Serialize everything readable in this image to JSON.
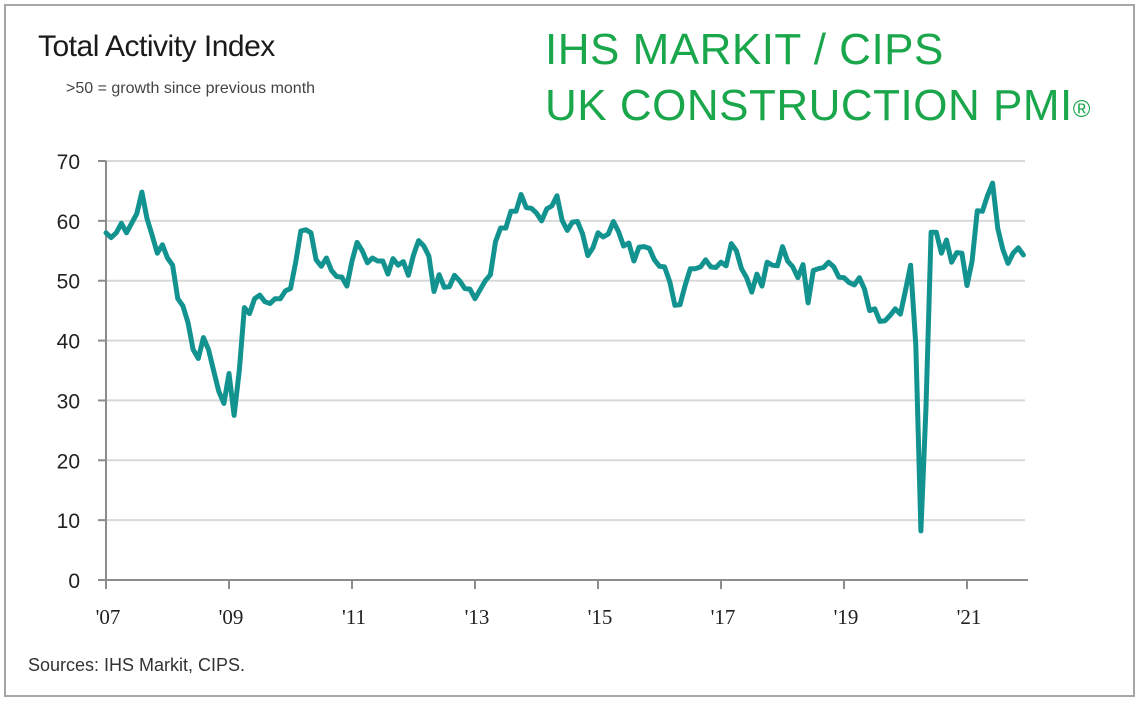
{
  "header": {
    "title": "Total Activity Index",
    "subtitle": ">50 = growth since previous month",
    "brand_line1": "IHS MARKIT / CIPS",
    "brand_line2": "UK CONSTRUCTION PMI",
    "brand_mark": "®"
  },
  "footer": {
    "source": "Sources: IHS Markit, CIPS."
  },
  "colors": {
    "line": "#13938f",
    "brand": "#1aa64a",
    "grid": "#d9d9d9",
    "axis": "#8c8c8c"
  },
  "chart_data": {
    "type": "line",
    "title": "Total Activity Index",
    "subtitle": ">50 = growth since previous month",
    "xlabel": "",
    "ylabel": "",
    "ylim": [
      0,
      70
    ],
    "yticks": [
      0,
      10,
      20,
      30,
      40,
      50,
      60,
      70
    ],
    "xticks": [
      "'07",
      "'09",
      "'11",
      "'13",
      "'15",
      "'17",
      "'19",
      "'21"
    ],
    "grid": true,
    "legend": null,
    "x_start": "2007-01",
    "x_frequency": "monthly",
    "series": [
      {
        "name": "UK Construction PMI Total Activity Index",
        "values": [
          58.0,
          57.2,
          58.0,
          59.6,
          58.0,
          59.6,
          61.2,
          64.8,
          60.4,
          57.6,
          54.6,
          56.0,
          53.8,
          52.6,
          47.0,
          45.8,
          43.0,
          38.5,
          37.0,
          40.5,
          38.5,
          35.0,
          31.5,
          29.5,
          34.5,
          27.5,
          35.0,
          45.5,
          44.5,
          47.0,
          47.6,
          46.5,
          46.2,
          47.0,
          47.0,
          48.3,
          48.7,
          53.0,
          58.3,
          58.5,
          58.0,
          53.5,
          52.4,
          53.8,
          51.7,
          50.7,
          50.6,
          49.1,
          53.3,
          56.4,
          55.0,
          53.0,
          53.8,
          53.3,
          53.3,
          51.1,
          53.7,
          52.6,
          53.2,
          50.9,
          54.3,
          56.7,
          55.8,
          54.1,
          48.2,
          51.0,
          48.9,
          49.0,
          50.9,
          50.0,
          48.7,
          48.6,
          47.0,
          48.5,
          50.0,
          51.0,
          56.5,
          58.8,
          58.8,
          61.6,
          61.6,
          64.4,
          62.2,
          62.1,
          61.3,
          60.0,
          62.0,
          62.5,
          64.2,
          60.1,
          58.4,
          59.8,
          59.9,
          57.8,
          54.2,
          55.5,
          58.0,
          57.3,
          57.8,
          59.9,
          58.2,
          55.8,
          56.3,
          53.3,
          55.6,
          55.7,
          55.4,
          53.5,
          52.4,
          52.3,
          49.8,
          45.9,
          46.0,
          49.2,
          52.0,
          52.0,
          52.3,
          53.5,
          52.3,
          52.2,
          53.1,
          52.5,
          56.2,
          55.0,
          52.0,
          50.5,
          48.1,
          51.1,
          49.1,
          53.1,
          52.6,
          52.5,
          55.7,
          53.3,
          52.3,
          50.5,
          52.7,
          46.3,
          51.7,
          52.0,
          52.2,
          53.1,
          52.3,
          50.6,
          50.5,
          49.7,
          49.3,
          50.5,
          48.6,
          45.0,
          45.3,
          43.2,
          43.3,
          44.2,
          45.3,
          44.4,
          48.4,
          52.6,
          39.3,
          8.2,
          28.9,
          58.1,
          58.1,
          54.6,
          56.8,
          53.1,
          54.7,
          54.6,
          49.2,
          53.3,
          61.7,
          61.6,
          64.2,
          66.3,
          58.7,
          55.2,
          52.9,
          54.6,
          55.5,
          54.3
        ]
      }
    ]
  }
}
